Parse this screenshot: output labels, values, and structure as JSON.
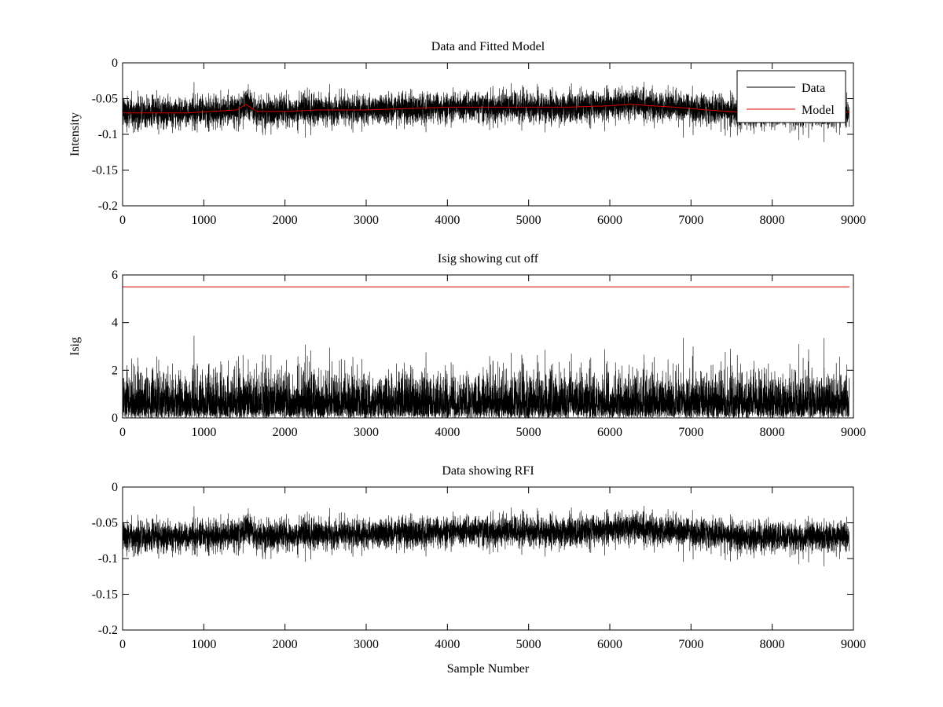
{
  "chart_data": [
    {
      "type": "line",
      "title": "Data and Fitted Model",
      "xlabel": "",
      "ylabel": "Intensity",
      "xlim": [
        0,
        9000
      ],
      "ylim": [
        -0.2,
        0
      ],
      "xticks": [
        0,
        1000,
        2000,
        3000,
        4000,
        5000,
        6000,
        7000,
        8000,
        9000
      ],
      "yticks": [
        0,
        -0.05,
        -0.1,
        -0.15,
        -0.2
      ],
      "ytick_labels": [
        "0",
        "-0.05",
        "-0.1",
        "-0.15",
        "-0.2"
      ],
      "legend": {
        "position": "top-right",
        "entries": [
          "Data",
          "Model"
        ]
      },
      "series": [
        {
          "name": "Data",
          "color": "#000000",
          "kind": "noisy",
          "n_points": 8950,
          "noise_amplitude": 0.0105,
          "baseline": {
            "x": [
              0,
              800,
              1400,
              1520,
              1650,
              2000,
              2400,
              3000,
              3500,
              4000,
              4500,
              5000,
              5500,
              6000,
              6250,
              6500,
              6800,
              7200,
              7700,
              8200,
              8950
            ],
            "y": [
              -0.07,
              -0.07,
              -0.066,
              -0.058,
              -0.068,
              -0.068,
              -0.066,
              -0.066,
              -0.064,
              -0.062,
              -0.062,
              -0.062,
              -0.062,
              -0.06,
              -0.058,
              -0.06,
              -0.062,
              -0.066,
              -0.07,
              -0.07,
              -0.069
            ]
          }
        },
        {
          "name": "Model",
          "color": "#e00000",
          "kind": "curve",
          "x": [
            0,
            800,
            1400,
            1520,
            1650,
            2000,
            2400,
            3000,
            3500,
            4000,
            4500,
            5000,
            5500,
            6000,
            6250,
            6500,
            6800,
            7200,
            7700,
            8200,
            8950
          ],
          "y": [
            -0.07,
            -0.07,
            -0.066,
            -0.058,
            -0.068,
            -0.068,
            -0.066,
            -0.066,
            -0.064,
            -0.062,
            -0.062,
            -0.062,
            -0.062,
            -0.06,
            -0.058,
            -0.06,
            -0.062,
            -0.066,
            -0.07,
            -0.07,
            -0.069
          ]
        }
      ]
    },
    {
      "type": "line",
      "title": "Isig showing cut off",
      "xlabel": "",
      "ylabel": "Isig",
      "xlim": [
        0,
        9000
      ],
      "ylim": [
        0,
        6
      ],
      "xticks": [
        0,
        1000,
        2000,
        3000,
        4000,
        5000,
        6000,
        7000,
        8000,
        9000
      ],
      "yticks": [
        0,
        2,
        4,
        6
      ],
      "ytick_labels": [
        "0",
        "2",
        "4",
        "6"
      ],
      "series": [
        {
          "name": "",
          "color": "#000000",
          "kind": "abs-noise",
          "n_points": 8950,
          "scale": 0.85,
          "max_value": 4.0
        },
        {
          "name": "",
          "color": "#e00000",
          "kind": "constant",
          "x": [
            0,
            8950
          ],
          "y": [
            5.5,
            5.5
          ]
        }
      ]
    },
    {
      "type": "line",
      "title": "Data showing RFI",
      "xlabel": "Sample Number",
      "ylabel": "",
      "xlim": [
        0,
        9000
      ],
      "ylim": [
        -0.2,
        0
      ],
      "xticks": [
        0,
        1000,
        2000,
        3000,
        4000,
        5000,
        6000,
        7000,
        8000,
        9000
      ],
      "yticks": [
        0,
        -0.05,
        -0.1,
        -0.15,
        -0.2
      ],
      "ytick_labels": [
        "0",
        "-0.05",
        "-0.1",
        "-0.15",
        "-0.2"
      ],
      "series": [
        {
          "name": "",
          "color": "#000000",
          "kind": "noisy",
          "n_points": 8950,
          "noise_amplitude": 0.0105,
          "baseline": {
            "x": [
              0,
              800,
              1400,
              1520,
              1650,
              2000,
              2400,
              3000,
              3500,
              4000,
              4500,
              5000,
              5500,
              6000,
              6250,
              6500,
              6800,
              7200,
              7700,
              8200,
              8950
            ],
            "y": [
              -0.07,
              -0.07,
              -0.066,
              -0.058,
              -0.068,
              -0.068,
              -0.066,
              -0.066,
              -0.064,
              -0.062,
              -0.062,
              -0.062,
              -0.062,
              -0.06,
              -0.058,
              -0.06,
              -0.062,
              -0.066,
              -0.07,
              -0.07,
              -0.069
            ]
          }
        }
      ]
    }
  ]
}
